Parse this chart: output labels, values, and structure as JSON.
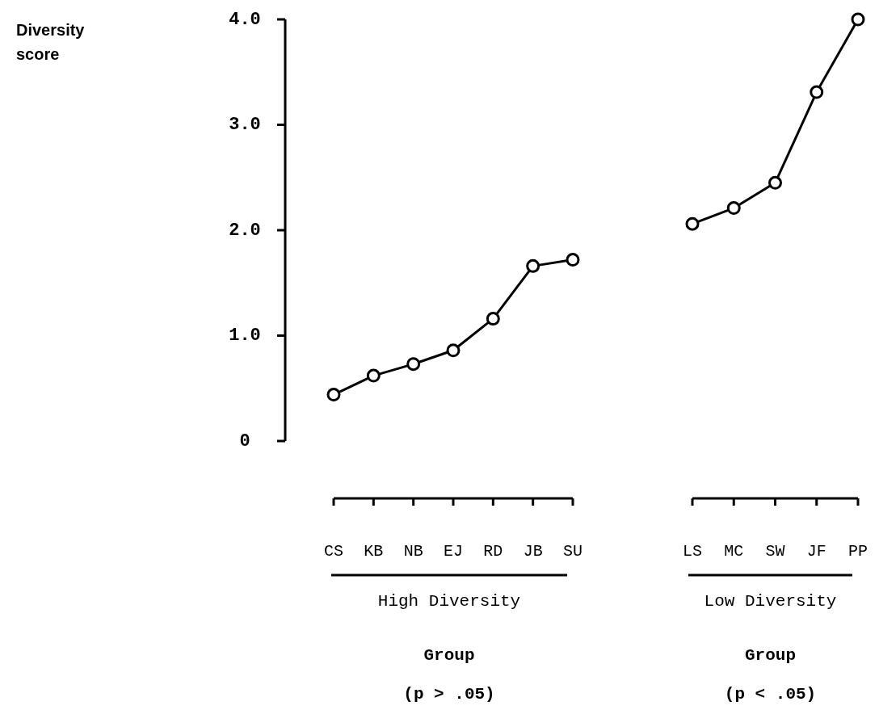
{
  "chart_data": [
    {
      "type": "line",
      "ylabel": "Diversity score",
      "xlabel": "High Diversity",
      "annotations": [
        "Group",
        "(p > .05)"
      ],
      "categories": [
        "CS",
        "KB",
        "NB",
        "EJ",
        "RD",
        "JB",
        "SU"
      ],
      "ylim": [
        0,
        4
      ],
      "yticks": [
        {
          "value": 0,
          "label": "0"
        },
        {
          "value": 1,
          "label": "1.0"
        },
        {
          "value": 2,
          "label": "2.0"
        },
        {
          "value": 3,
          "label": "3.0"
        },
        {
          "value": 4,
          "label": "4.0"
        }
      ],
      "marker": "circle",
      "line_style": "solid",
      "series": [
        {
          "color": "#000000",
          "values": [
            0.44,
            0.62,
            0.73,
            0.86,
            1.16,
            1.66,
            1.72
          ]
        }
      ]
    },
    {
      "type": "line",
      "xlabel": "Low Diversity",
      "annotations": [
        "Group",
        "(p < .05)"
      ],
      "categories": [
        "LS",
        "MC",
        "SW",
        "JF",
        "PP"
      ],
      "ylim": [
        0,
        4
      ],
      "tick_labels": "x",
      "marker": "circle",
      "line_style": "solid",
      "series": [
        {
          "color": "#000000",
          "values": [
            2.06,
            2.21,
            2.45,
            3.31,
            4.0
          ]
        }
      ]
    }
  ]
}
